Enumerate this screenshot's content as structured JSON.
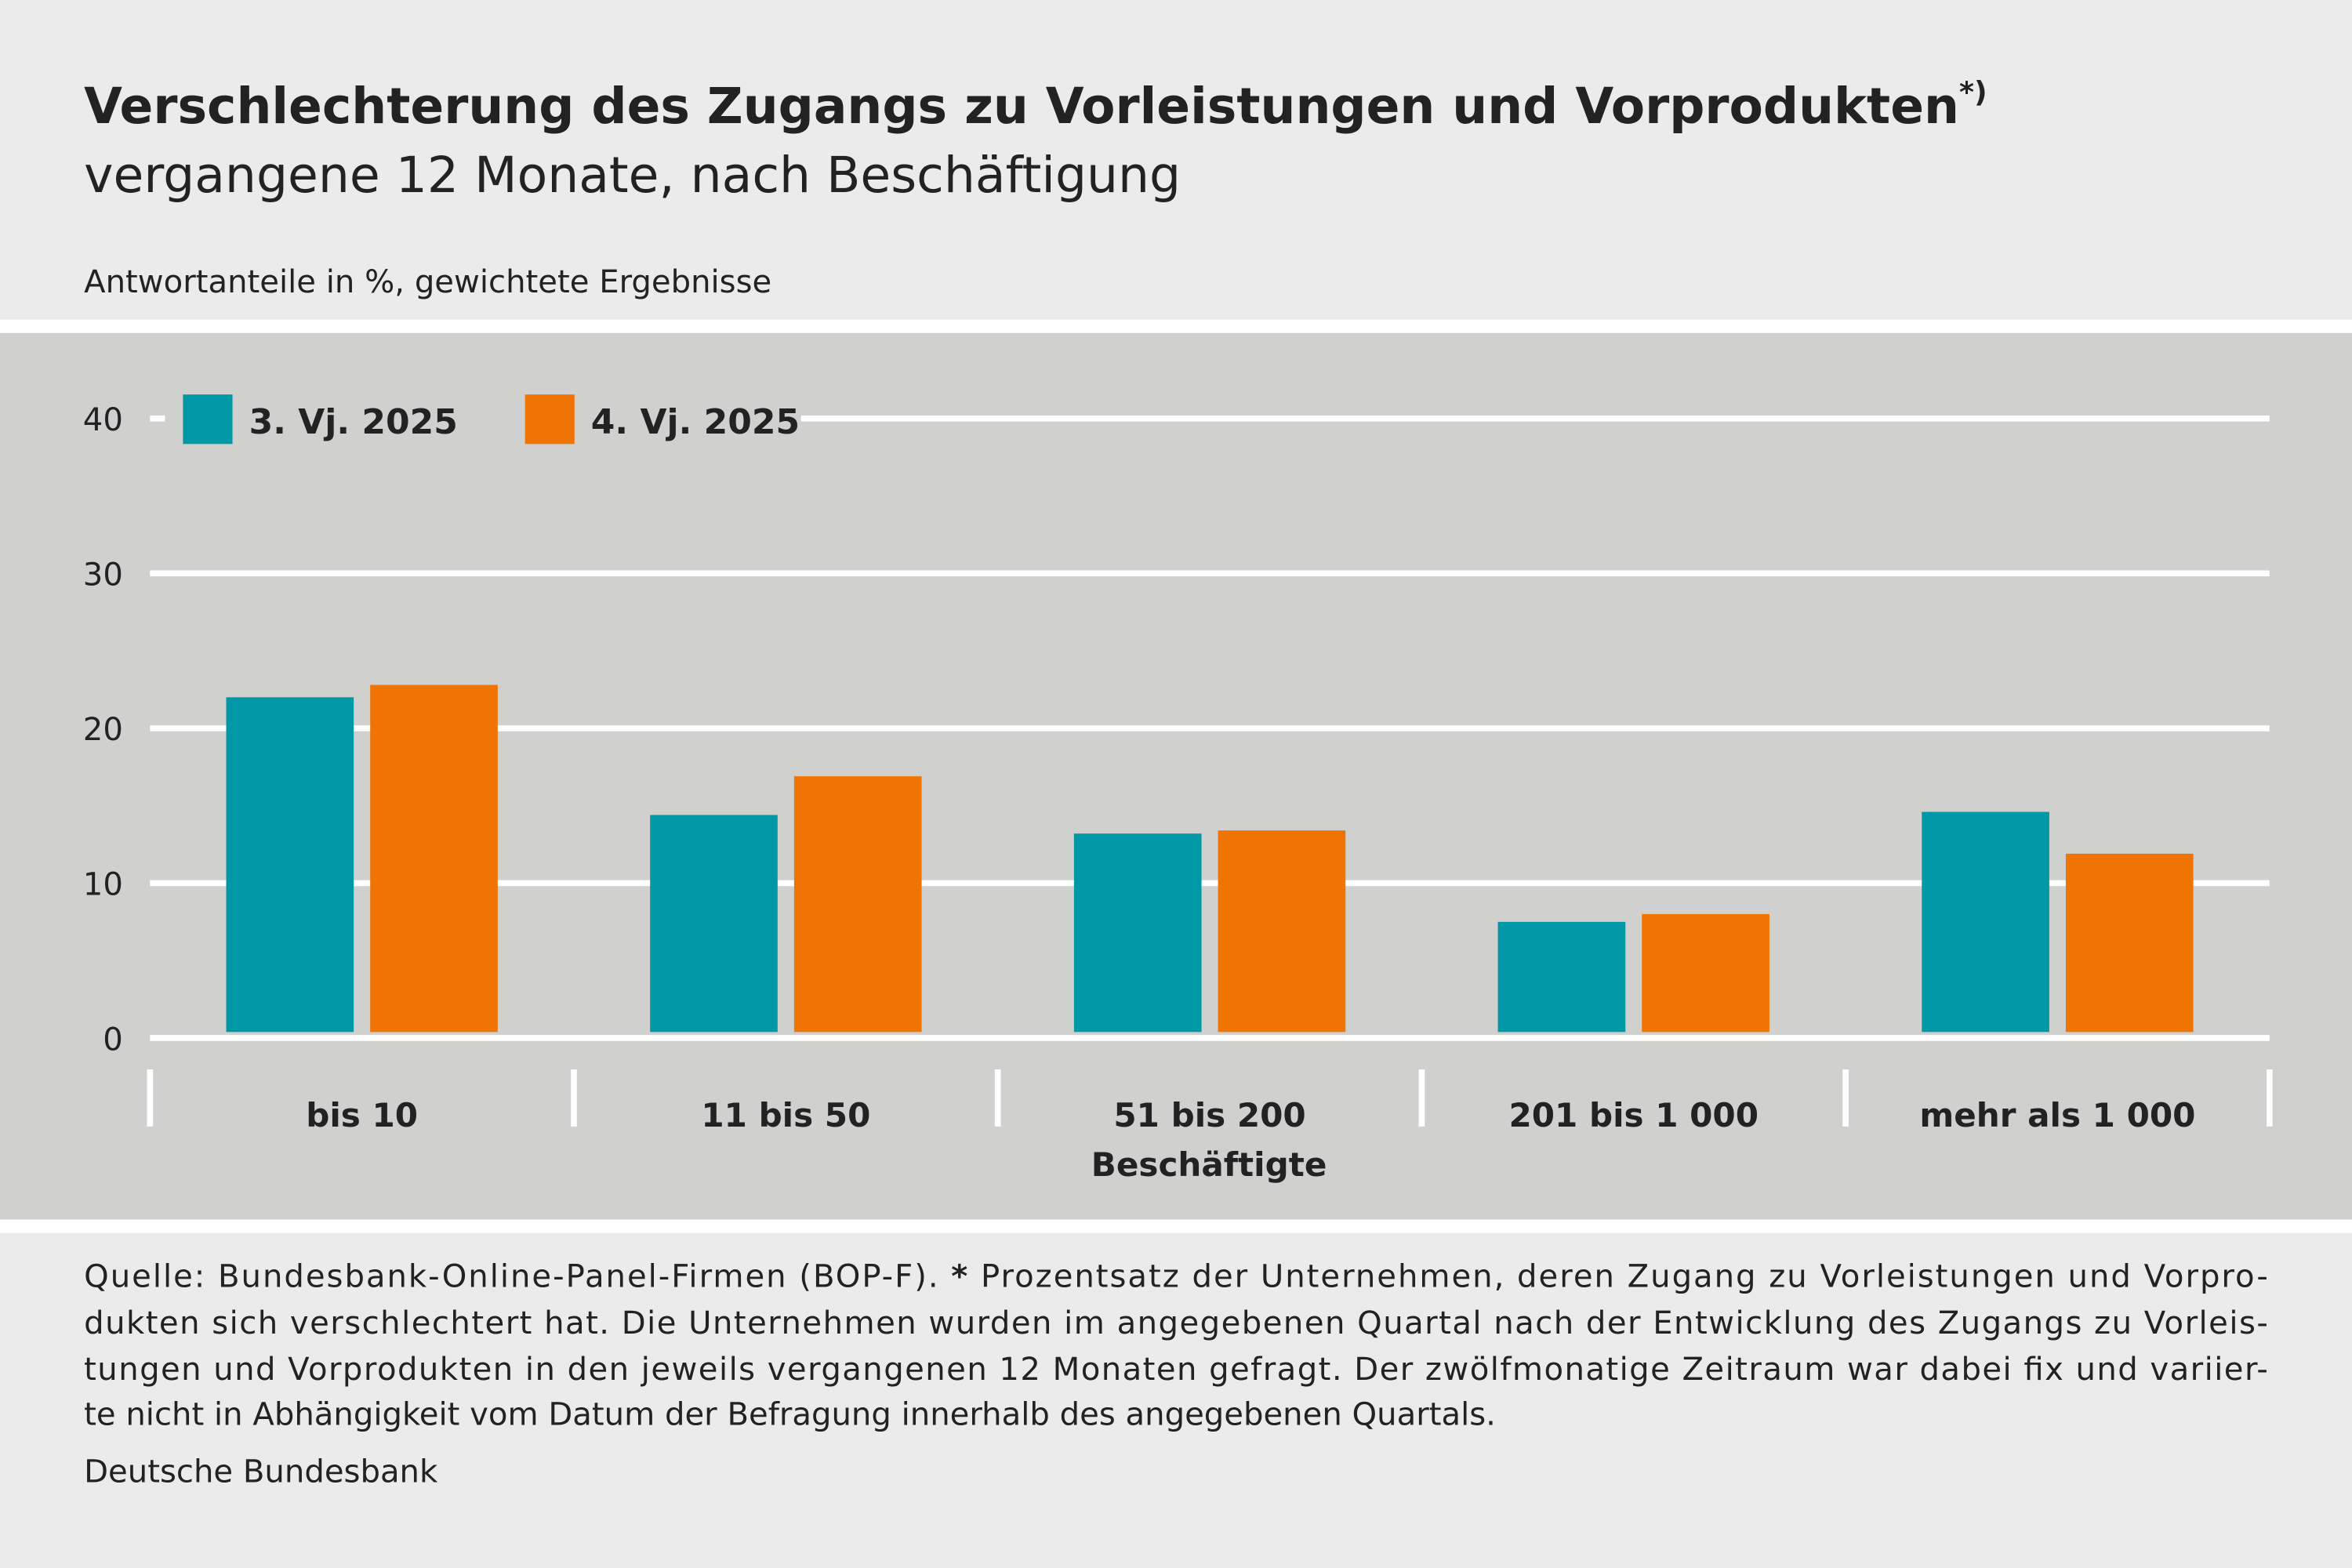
{
  "chart_data": {
    "type": "bar",
    "title": "Verschlechterung des Zugangs zu Vorleistungen und Vorprodukten",
    "title_note": "*)",
    "subtitle": "vergangene 12 Monate, nach Beschäftigung",
    "unit_label": "Antwortanteile in %, gewichtete Ergebnisse",
    "x_label": "Beschäftigte",
    "categories": [
      "bis 10",
      "11 bis 50",
      "51 bis 200",
      "201 bis 1 000",
      "mehr als 1 000"
    ],
    "series": [
      {
        "name": "3. Vj. 2025",
        "color": "#0097a7",
        "values": [
          22,
          14.4,
          13.2,
          7.5,
          14.6
        ]
      },
      {
        "name": "4. Vj. 2025",
        "color": "#ef7404",
        "values": [
          22.8,
          16.9,
          13.4,
          8.0,
          11.9
        ]
      }
    ],
    "ylim": [
      0,
      40
    ],
    "yticks": [
      0,
      10,
      20,
      30,
      40
    ],
    "grid": true,
    "legend": "top-left",
    "source": "Quelle: Bundesbank-Online-Panel-Firmen (BOP-F).",
    "footnote_marker": "*",
    "footnote_lines": [
      "Prozentsatz der Unternehmen, deren Zugang zu Vorleistungen und Vorpro-",
      "dukten sich verschlechtert hat. Die Unternehmen wurden im angegebenen Quartal nach der Entwicklung des Zugangs zu Vorleis-",
      "tungen und Vorprodukten in den jeweils vergangenen 12 Monaten gefragt. Der zwölfmonatige Zeitraum war dabei fix und variier-",
      "te nicht in Abhängigkeit vom Datum der Befragung innerhalb des angegebenen Quartals."
    ],
    "publisher": "Deutsche Bundesbank"
  }
}
